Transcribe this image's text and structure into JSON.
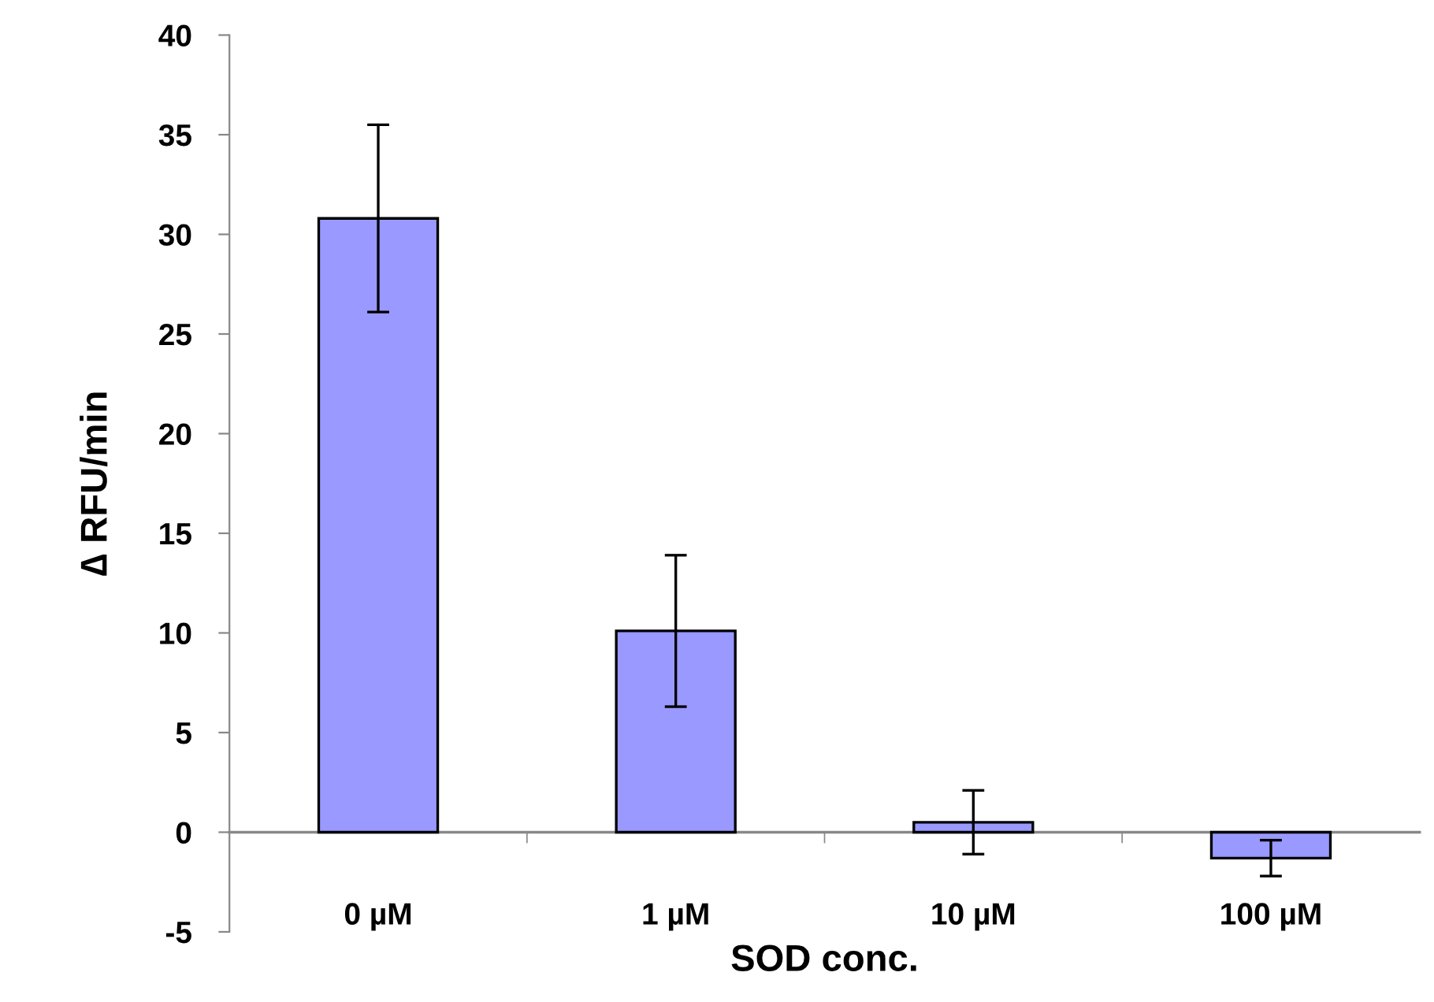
{
  "chart_data": {
    "type": "bar",
    "xlabel": "SOD conc.",
    "ylabel": "∆ RFU/min",
    "categories": [
      "0 µM",
      "1 µM",
      "10 µM",
      "100 µM"
    ],
    "values": [
      30.8,
      10.1,
      0.5,
      -1.3
    ],
    "errors": [
      4.7,
      3.8,
      1.6,
      0.9
    ],
    "color": "#9999ff",
    "ylim": [
      -5,
      40
    ],
    "yticks": [
      -5,
      0,
      5,
      10,
      15,
      20,
      25,
      30,
      35,
      40
    ],
    "grid": false,
    "legend": false
  }
}
